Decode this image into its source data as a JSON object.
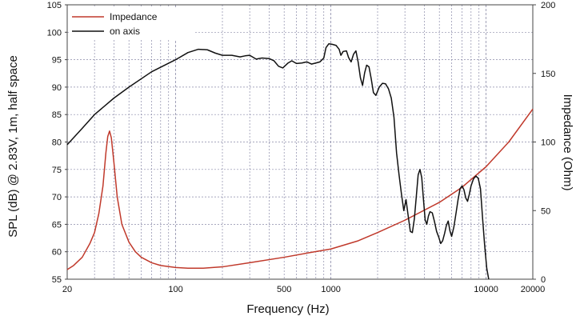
{
  "chart_data": {
    "type": "line",
    "xlabel": "Frequency (Hz)",
    "ylabel": "SPL (dB) @ 2.83V, 1m, half space",
    "y2label": "Impedance (Ohm)",
    "xscale": "log",
    "xlim": [
      20,
      20000
    ],
    "ylim": [
      55,
      105
    ],
    "y2lim": [
      0,
      200
    ],
    "grid": true,
    "legend_position": "top-left",
    "colors": {
      "impedance": "#c0392b",
      "spl": "#111111",
      "grid": "#8a8aa8",
      "frame": "#444444"
    },
    "x_ticks": [
      {
        "value": 20,
        "label": "20"
      },
      {
        "value": 100,
        "label": "100"
      },
      {
        "value": 500,
        "label": "500"
      },
      {
        "value": 1000,
        "label": "1000"
      },
      {
        "value": 10000,
        "label": "10000"
      },
      {
        "value": 20000,
        "label": "20000"
      }
    ],
    "y_ticks": [
      "55",
      "60",
      "65",
      "70",
      "75",
      "80",
      "85",
      "90",
      "95",
      "100",
      "105"
    ],
    "y2_ticks": [
      "0",
      "50",
      "100",
      "150",
      "200"
    ],
    "series": [
      {
        "name": "Impedance",
        "axis": "right",
        "points": [
          [
            20,
            7
          ],
          [
            22,
            10
          ],
          [
            25,
            16
          ],
          [
            28,
            26
          ],
          [
            30,
            34
          ],
          [
            32,
            48
          ],
          [
            34,
            68
          ],
          [
            35.5,
            92
          ],
          [
            36.5,
            104
          ],
          [
            37.5,
            108
          ],
          [
            38.5,
            103
          ],
          [
            40,
            85
          ],
          [
            42,
            60
          ],
          [
            45,
            40
          ],
          [
            50,
            27
          ],
          [
            55,
            20
          ],
          [
            60,
            16
          ],
          [
            70,
            12
          ],
          [
            80,
            10
          ],
          [
            100,
            8.5
          ],
          [
            120,
            8
          ],
          [
            150,
            8
          ],
          [
            200,
            9
          ],
          [
            300,
            12
          ],
          [
            500,
            16
          ],
          [
            700,
            19
          ],
          [
            1000,
            22
          ],
          [
            1500,
            28
          ],
          [
            2000,
            34
          ],
          [
            3000,
            43
          ],
          [
            5000,
            56
          ],
          [
            7000,
            67
          ],
          [
            10000,
            82
          ],
          [
            14000,
            100
          ],
          [
            20000,
            124
          ]
        ]
      },
      {
        "name": "on axis",
        "axis": "left",
        "points": [
          [
            20,
            79.5
          ],
          [
            25,
            82.5
          ],
          [
            30,
            85
          ],
          [
            40,
            88
          ],
          [
            50,
            90
          ],
          [
            70,
            92.8
          ],
          [
            100,
            95
          ],
          [
            120,
            96.3
          ],
          [
            140,
            96.9
          ],
          [
            160,
            96.8
          ],
          [
            180,
            96.2
          ],
          [
            200,
            95.8
          ],
          [
            230,
            95.8
          ],
          [
            260,
            95.5
          ],
          [
            280,
            95.7
          ],
          [
            300,
            95.8
          ],
          [
            330,
            95.1
          ],
          [
            360,
            95.3
          ],
          [
            400,
            95.2
          ],
          [
            430,
            94.8
          ],
          [
            460,
            93.8
          ],
          [
            490,
            93.5
          ],
          [
            530,
            94.4
          ],
          [
            560,
            94.8
          ],
          [
            600,
            94.3
          ],
          [
            650,
            94.4
          ],
          [
            700,
            94.6
          ],
          [
            750,
            94.2
          ],
          [
            800,
            94.4
          ],
          [
            850,
            94.6
          ],
          [
            900,
            95.3
          ],
          [
            930,
            97.2
          ],
          [
            970,
            97.9
          ],
          [
            1020,
            97.8
          ],
          [
            1080,
            97.6
          ],
          [
            1130,
            96.9
          ],
          [
            1160,
            95.8
          ],
          [
            1200,
            96.5
          ],
          [
            1260,
            96.6
          ],
          [
            1300,
            95.4
          ],
          [
            1350,
            94.6
          ],
          [
            1400,
            96
          ],
          [
            1450,
            96.6
          ],
          [
            1500,
            94.5
          ],
          [
            1550,
            91.7
          ],
          [
            1600,
            90.3
          ],
          [
            1650,
            92.6
          ],
          [
            1700,
            94
          ],
          [
            1760,
            93.7
          ],
          [
            1820,
            91.5
          ],
          [
            1880,
            89
          ],
          [
            1950,
            88.5
          ],
          [
            2050,
            90
          ],
          [
            2150,
            90.7
          ],
          [
            2250,
            90.6
          ],
          [
            2350,
            89.7
          ],
          [
            2450,
            88
          ],
          [
            2550,
            84.5
          ],
          [
            2650,
            78
          ],
          [
            2750,
            74
          ],
          [
            2850,
            70.5
          ],
          [
            2950,
            67.5
          ],
          [
            3050,
            69.5
          ],
          [
            3150,
            66.5
          ],
          [
            3250,
            63.7
          ],
          [
            3350,
            63.5
          ],
          [
            3450,
            66
          ],
          [
            3550,
            70
          ],
          [
            3650,
            74
          ],
          [
            3750,
            75
          ],
          [
            3850,
            73.5
          ],
          [
            3950,
            69.5
          ],
          [
            4050,
            65.8
          ],
          [
            4150,
            65
          ],
          [
            4250,
            66.5
          ],
          [
            4350,
            67.3
          ],
          [
            4500,
            67.1
          ],
          [
            4650,
            65.5
          ],
          [
            4800,
            63.7
          ],
          [
            4950,
            62.7
          ],
          [
            5100,
            61.5
          ],
          [
            5250,
            62
          ],
          [
            5400,
            63.3
          ],
          [
            5550,
            64.8
          ],
          [
            5700,
            65.6
          ],
          [
            5850,
            63.8
          ],
          [
            6000,
            62.8
          ],
          [
            6200,
            64.5
          ],
          [
            6400,
            67
          ],
          [
            6600,
            69.5
          ],
          [
            6800,
            71.5
          ],
          [
            7000,
            72
          ],
          [
            7200,
            71.3
          ],
          [
            7400,
            69.8
          ],
          [
            7600,
            69.2
          ],
          [
            7800,
            70.5
          ],
          [
            8000,
            72
          ],
          [
            8300,
            73.3
          ],
          [
            8600,
            73.8
          ],
          [
            8900,
            73.4
          ],
          [
            9200,
            71.5
          ],
          [
            9500,
            66
          ],
          [
            9800,
            61
          ],
          [
            10100,
            57
          ],
          [
            10400,
            55
          ]
        ]
      }
    ]
  }
}
